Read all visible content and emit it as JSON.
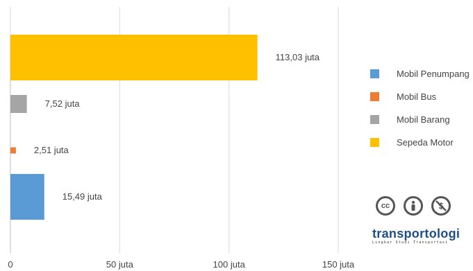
{
  "chart_data": {
    "type": "bar",
    "orientation": "horizontal",
    "categories": [
      "Mobil Penumpang",
      "Mobil Bus",
      "Mobil Barang",
      "Sepeda Motor"
    ],
    "values": [
      15.49,
      2.51,
      7.52,
      113.03
    ],
    "value_labels": [
      "15,49 juta",
      "2,51 juta",
      "7,52 juta",
      "113,03 juta"
    ],
    "colors": [
      "#5b9bd5",
      "#ed7d31",
      "#a5a5a5",
      "#ffc000"
    ],
    "xlim": [
      0,
      150
    ],
    "x_ticks": [
      0,
      50,
      100,
      150
    ],
    "x_tick_labels": [
      "0",
      "50 juta",
      "100 juta",
      "150 juta"
    ],
    "grid": "vertical",
    "legend": "right",
    "title": "",
    "xlabel": "",
    "ylabel": ""
  },
  "legend": {
    "items": [
      {
        "label": "Mobil Penumpang",
        "color": "#5b9bd5"
      },
      {
        "label": "Mobil Bus",
        "color": "#ed7d31"
      },
      {
        "label": "Mobil Barang",
        "color": "#a5a5a5"
      },
      {
        "label": "Sepeda Motor",
        "color": "#ffc000"
      }
    ]
  },
  "license_icons": [
    "creative-commons-icon",
    "attribution-icon",
    "noncommercial-icon"
  ],
  "brand": {
    "name": "transportologi",
    "tagline": "Lingkar Studi Transportasi"
  }
}
